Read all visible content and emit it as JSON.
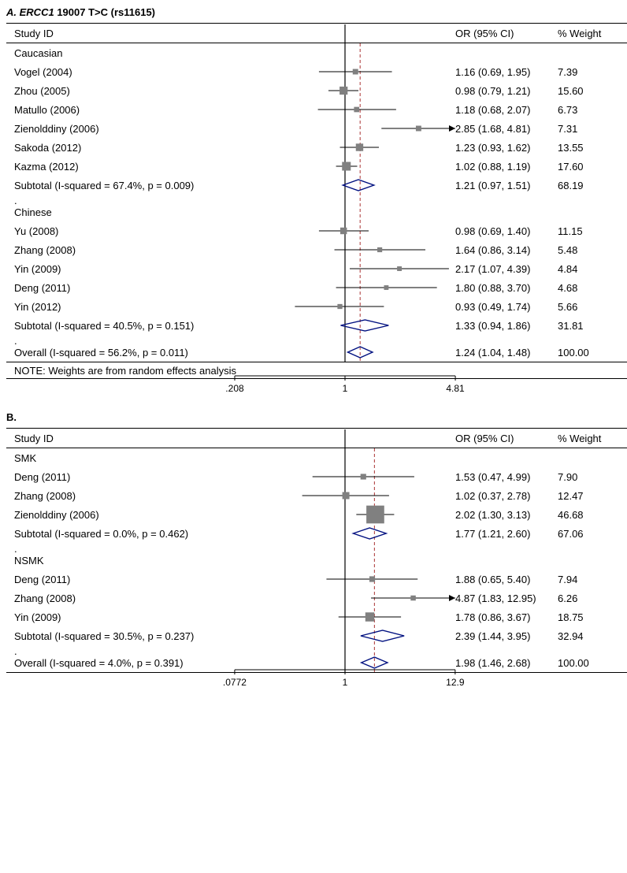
{
  "panelA": {
    "title_prefix": "A.",
    "title_gene": "ERCC1",
    "title_rest": "19007 T>C (rs11615)",
    "headers": {
      "study": "Study ID",
      "or": "OR (95% CI)",
      "weight": "% Weight"
    },
    "plot": {
      "log_min": -1.57,
      "log_max": 1.57,
      "ref_line": 1,
      "overall_line": 1.24,
      "axis_ticks": [
        {
          "val": 0.208,
          "label": ".208"
        },
        {
          "val": 1,
          "label": "1"
        },
        {
          "val": 4.81,
          "label": "4.81"
        }
      ],
      "colors": {
        "line": "#000000",
        "box": "#808080",
        "diamond_stroke": "#001080",
        "ref_dash": "#aa3333"
      }
    },
    "groups": [
      {
        "name": "Caucasian",
        "studies": [
          {
            "label": "Vogel (2004)",
            "or": 1.16,
            "lo": 0.69,
            "hi": 1.95,
            "wt": "7.39",
            "or_text": "1.16 (0.69, 1.95)"
          },
          {
            "label": "Zhou (2005)",
            "or": 0.98,
            "lo": 0.79,
            "hi": 1.21,
            "wt": "15.60",
            "or_text": "0.98 (0.79, 1.21)"
          },
          {
            "label": "Matullo (2006)",
            "or": 1.18,
            "lo": 0.68,
            "hi": 2.07,
            "wt": "6.73",
            "or_text": "1.18 (0.68, 2.07)"
          },
          {
            "label": "Zienolddiny (2006)",
            "or": 2.85,
            "lo": 1.68,
            "hi": 4.81,
            "wt": "7.31",
            "or_text": "2.85 (1.68, 4.81)",
            "arrow_right": true
          },
          {
            "label": "Sakoda (2012)",
            "or": 1.23,
            "lo": 0.93,
            "hi": 1.62,
            "wt": "13.55",
            "or_text": "1.23 (0.93, 1.62)"
          },
          {
            "label": "Kazma (2012)",
            "or": 1.02,
            "lo": 0.88,
            "hi": 1.19,
            "wt": "17.60",
            "or_text": "1.02 (0.88, 1.19)"
          }
        ],
        "subtotal": {
          "label": "Subtotal  (I-squared = 67.4%, p = 0.009)",
          "or": 1.21,
          "lo": 0.97,
          "hi": 1.51,
          "wt": "68.19",
          "or_text": "1.21 (0.97, 1.51)"
        }
      },
      {
        "name": "Chinese",
        "studies": [
          {
            "label": "Yu (2008)",
            "or": 0.98,
            "lo": 0.69,
            "hi": 1.4,
            "wt": "11.15",
            "or_text": "0.98 (0.69, 1.40)"
          },
          {
            "label": "Zhang (2008)",
            "or": 1.64,
            "lo": 0.86,
            "hi": 3.14,
            "wt": "5.48",
            "or_text": "1.64 (0.86, 3.14)"
          },
          {
            "label": "Yin (2009)",
            "or": 2.17,
            "lo": 1.07,
            "hi": 4.39,
            "wt": "4.84",
            "or_text": "2.17 (1.07, 4.39)"
          },
          {
            "label": "Deng (2011)",
            "or": 1.8,
            "lo": 0.88,
            "hi": 3.7,
            "wt": "4.68",
            "or_text": "1.80 (0.88, 3.70)"
          },
          {
            "label": "Yin (2012)",
            "or": 0.93,
            "lo": 0.49,
            "hi": 1.74,
            "wt": "5.66",
            "or_text": "0.93 (0.49, 1.74)"
          }
        ],
        "subtotal": {
          "label": "Subtotal  (I-squared = 40.5%, p = 0.151)",
          "or": 1.33,
          "lo": 0.94,
          "hi": 1.86,
          "wt": "31.81",
          "or_text": "1.33 (0.94, 1.86)"
        }
      }
    ],
    "overall": {
      "label": "Overall  (I-squared = 56.2%, p = 0.011)",
      "or": 1.24,
      "lo": 1.04,
      "hi": 1.48,
      "wt": "100.00",
      "or_text": "1.24 (1.04, 1.48)"
    },
    "note": "NOTE: Weights are are from random effects analysis",
    "note_fixed": "NOTE: Weights are from random effects analysis"
  },
  "panelB": {
    "title_prefix": "B.",
    "headers": {
      "study": "Study ID",
      "or": "OR (95% CI)",
      "weight": "% Weight"
    },
    "plot": {
      "log_min": -2.56,
      "log_max": 2.56,
      "ref_line": 1,
      "overall_line": 1.98,
      "axis_ticks": [
        {
          "val": 0.0772,
          "label": ".0772"
        },
        {
          "val": 1,
          "label": "1"
        },
        {
          "val": 12.9,
          "label": "12.9"
        }
      ],
      "colors": {
        "line": "#000000",
        "box": "#808080",
        "diamond_stroke": "#001080",
        "ref_dash": "#aa3333"
      }
    },
    "groups": [
      {
        "name": "SMK",
        "studies": [
          {
            "label": "Deng (2011)",
            "or": 1.53,
            "lo": 0.47,
            "hi": 4.99,
            "wt": "7.90",
            "or_text": "1.53 (0.47, 4.99)"
          },
          {
            "label": "Zhang (2008)",
            "or": 1.02,
            "lo": 0.37,
            "hi": 2.78,
            "wt": "12.47",
            "or_text": "1.02 (0.37, 2.78)"
          },
          {
            "label": "Zienolddiny (2006)",
            "or": 2.02,
            "lo": 1.3,
            "hi": 3.13,
            "wt": "46.68",
            "or_text": "2.02 (1.30, 3.13)"
          }
        ],
        "subtotal": {
          "label": "Subtotal (I-squared = 0.0%, p = 0.462)",
          "or": 1.77,
          "lo": 1.21,
          "hi": 2.6,
          "wt": "67.06",
          "or_text": "1.77 (1.21, 2.60)"
        }
      },
      {
        "name": "NSMK",
        "studies": [
          {
            "label": "Deng (2011)",
            "or": 1.88,
            "lo": 0.65,
            "hi": 5.4,
            "wt": "7.94",
            "or_text": "1.88 (0.65, 5.40)"
          },
          {
            "label": "Zhang (2008)",
            "or": 4.87,
            "lo": 1.83,
            "hi": 12.95,
            "wt": "6.26",
            "or_text": "4.87 (1.83, 12.95)",
            "arrow_right": true
          },
          {
            "label": "Yin (2009)",
            "or": 1.78,
            "lo": 0.86,
            "hi": 3.67,
            "wt": "18.75",
            "or_text": "1.78 (0.86, 3.67)"
          }
        ],
        "subtotal": {
          "label": "Subtotal (I-squared = 30.5%, p = 0.237)",
          "or": 2.39,
          "lo": 1.44,
          "hi": 3.95,
          "wt": "32.94",
          "or_text": "2.39 (1.44, 3.95)"
        }
      }
    ],
    "overall": {
      "label": "Overall (I-squared = 4.0%, p = 0.391)",
      "or": 1.98,
      "lo": 1.46,
      "hi": 2.68,
      "wt": "100.00",
      "or_text": "1.98 (1.46, 2.68)"
    }
  }
}
